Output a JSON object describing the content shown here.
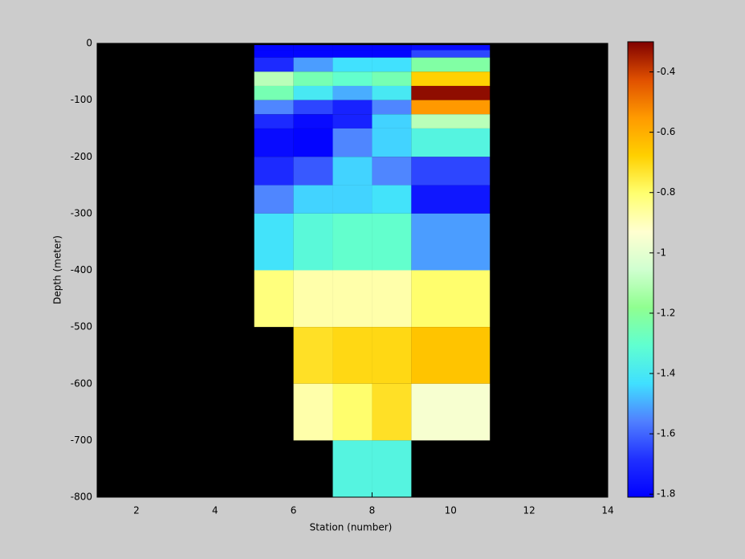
{
  "chart_data": {
    "type": "heatmap",
    "xlabel": "Station (number)",
    "ylabel": "Depth (meter)",
    "xlim": [
      1,
      14
    ],
    "xticks": [
      2,
      4,
      6,
      8,
      10,
      12,
      14
    ],
    "ylim": [
      -800,
      0
    ],
    "yticks": [
      -800,
      -700,
      -600,
      -500,
      -400,
      -300,
      -200,
      -100,
      0
    ],
    "x_edges": [
      5,
      6,
      7,
      8,
      9,
      11
    ],
    "y_edges": [
      -3,
      -12,
      -25,
      -50,
      -75,
      -100,
      -125,
      -150,
      -200,
      -250,
      -300,
      -400,
      -500,
      -600,
      -700,
      -800
    ],
    "values": [
      [
        -1.8,
        -1.8,
        -1.8,
        -1.8,
        -1.78
      ],
      [
        -1.8,
        -1.8,
        -1.8,
        -1.8,
        -1.65
      ],
      [
        -1.7,
        -1.52,
        -1.43,
        -1.43,
        -1.22
      ],
      [
        -1.1,
        -1.25,
        -1.3,
        -1.25,
        -0.68
      ],
      [
        -1.25,
        -1.4,
        -1.5,
        -1.4,
        -0.32
      ],
      [
        -1.55,
        -1.65,
        -1.72,
        -1.55,
        -0.55
      ],
      [
        -1.7,
        -1.78,
        -1.72,
        -1.45,
        -1.1
      ],
      [
        -1.78,
        -1.8,
        -1.55,
        -1.45,
        -1.35
      ],
      [
        -1.7,
        -1.62,
        -1.45,
        -1.55,
        -1.65
      ],
      [
        -1.55,
        -1.45,
        -1.45,
        -1.42,
        -1.75
      ],
      [
        -1.42,
        -1.33,
        -1.3,
        -1.3,
        -1.52
      ],
      [
        -0.82,
        -0.88,
        -0.88,
        -0.88,
        -0.8
      ],
      [
        null,
        -0.72,
        -0.7,
        -0.7,
        -0.65
      ],
      [
        null,
        -0.88,
        -0.8,
        -0.72,
        -0.95
      ],
      [
        null,
        null,
        -1.35,
        -1.35,
        null
      ]
    ],
    "missing_color": "#000000",
    "clim": [
      -1.81,
      -0.3
    ],
    "cticks": [
      -1.8,
      -1.6,
      -1.4,
      -1.2,
      -1,
      -0.8,
      -0.6,
      -0.4
    ],
    "colormap": [
      "#0000ff",
      "#2030ff",
      "#5080ff",
      "#40e0ff",
      "#60ffd0",
      "#90ff90",
      "#d0ffd0",
      "#ffffd0",
      "#ffff70",
      "#ffd000",
      "#ff9a00",
      "#e05000",
      "#800000"
    ]
  }
}
